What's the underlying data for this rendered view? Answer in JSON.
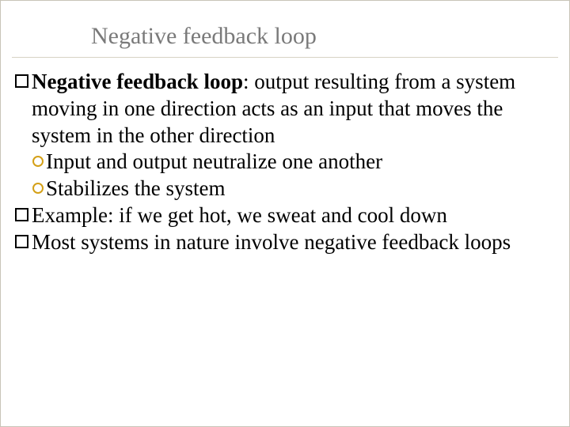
{
  "slide": {
    "title": "Negative feedback loop",
    "colors": {
      "title_text": "#7a7a7a",
      "body_text": "#000000",
      "square_bullet_border": "#000000",
      "circle_bullet_border": "#d4a017",
      "divider": "#d6d2c4",
      "slide_border": "#c8c4b8",
      "background": "#ffffff"
    },
    "fonts": {
      "title_size_pt": 30,
      "body_size_pt": 27,
      "family": "Georgia, serif"
    },
    "items": [
      {
        "level": 1,
        "bullet": "square",
        "bold_prefix": "Negative feedback loop",
        "rest": ": output resulting from a system moving in one direction acts as an input that moves the system in the other direction"
      },
      {
        "level": 2,
        "bullet": "circle",
        "text": "Input and output neutralize one another"
      },
      {
        "level": 2,
        "bullet": "circle",
        "text": "Stabilizes the system"
      },
      {
        "level": 1,
        "bullet": "square",
        "text": "Example: if we get hot, we sweat and cool down"
      },
      {
        "level": 1,
        "bullet": "square",
        "text": "Most systems in nature involve negative feedback loops"
      }
    ]
  }
}
